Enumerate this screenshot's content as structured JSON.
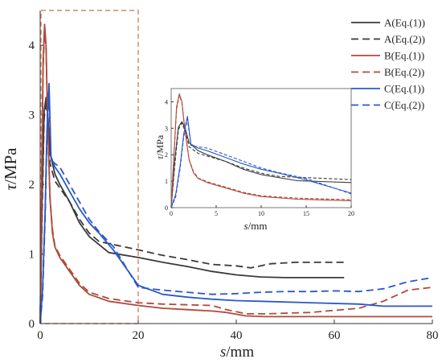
{
  "chart_data": [
    {
      "type": "line",
      "title": "",
      "xlabel_var": "s",
      "xlabel_unit": "/mm",
      "ylabel_var": "τ",
      "ylabel_unit": "/MPa",
      "xlim": [
        0,
        80
      ],
      "ylim": [
        0,
        4.5
      ],
      "xticks": [
        "0",
        "20",
        "40",
        "60",
        "80"
      ],
      "yticks": [
        "0",
        "1",
        "2",
        "3",
        "4"
      ],
      "grid": false,
      "legend_position": "top-right",
      "zoom_region": {
        "x": [
          0,
          20
        ],
        "y": [
          0,
          4.5
        ]
      },
      "series": [
        {
          "name": "A(Eq.(1))",
          "color": "#3a3a3a",
          "dash": "solid",
          "x": [
            0,
            0.4,
            0.8,
            1.2,
            1.6,
            2,
            3,
            4,
            6,
            8,
            10,
            14,
            20,
            25,
            30,
            35,
            40,
            45,
            50,
            55,
            62
          ],
          "y": [
            0,
            1.8,
            3.05,
            3.25,
            2.95,
            2.45,
            2.15,
            2.0,
            1.75,
            1.45,
            1.25,
            1.02,
            0.95,
            0.88,
            0.82,
            0.75,
            0.7,
            0.67,
            0.66,
            0.66,
            0.66
          ]
        },
        {
          "name": "A(Eq.(2))",
          "color": "#3a3a3a",
          "dash": "dashed",
          "x": [
            0,
            0.4,
            0.8,
            1.2,
            1.6,
            2,
            3,
            4,
            6,
            8,
            10,
            12,
            16,
            20,
            25,
            30,
            35,
            40,
            43,
            47,
            52,
            57,
            62
          ],
          "y": [
            0,
            1.6,
            2.95,
            3.2,
            2.85,
            2.3,
            2.05,
            1.95,
            1.75,
            1.5,
            1.3,
            1.18,
            1.12,
            1.06,
            0.98,
            0.92,
            0.85,
            0.83,
            0.8,
            0.86,
            0.88,
            0.88,
            0.88
          ]
        },
        {
          "name": "B(Eq.(1))",
          "color": "#b04a3a",
          "dash": "solid",
          "x": [
            0,
            0.3,
            0.6,
            0.9,
            1.2,
            1.5,
            2,
            2.5,
            3,
            4,
            6,
            8,
            10,
            14,
            20,
            25,
            30,
            35,
            38,
            42,
            46,
            55,
            65,
            80
          ],
          "y": [
            0,
            2.0,
            3.8,
            4.3,
            4.0,
            3.0,
            1.8,
            1.3,
            1.1,
            0.95,
            0.75,
            0.55,
            0.42,
            0.32,
            0.26,
            0.22,
            0.2,
            0.18,
            0.16,
            0.11,
            0.1,
            0.1,
            0.1,
            0.1
          ]
        },
        {
          "name": "B(Eq.(2))",
          "color": "#b04a3a",
          "dash": "dashed",
          "x": [
            0,
            0.3,
            0.6,
            0.9,
            1.2,
            1.5,
            2,
            2.5,
            3,
            4,
            6,
            8,
            10,
            14,
            20,
            25,
            30,
            35,
            38,
            42,
            46,
            55,
            65,
            70,
            75,
            80
          ],
          "y": [
            0,
            1.9,
            3.7,
            4.25,
            3.95,
            3.0,
            1.8,
            1.35,
            1.12,
            0.98,
            0.78,
            0.58,
            0.45,
            0.36,
            0.3,
            0.28,
            0.27,
            0.26,
            0.2,
            0.14,
            0.14,
            0.16,
            0.22,
            0.32,
            0.48,
            0.52
          ]
        },
        {
          "name": "C(Eq.(1))",
          "color": "#2b57c8",
          "dash": "solid",
          "x": [
            0,
            0.5,
            1.0,
            1.4,
            1.8,
            2.2,
            3,
            4,
            6,
            8,
            10,
            12,
            15,
            20,
            25,
            30,
            35,
            40,
            45,
            55,
            65,
            70,
            80
          ],
          "y": [
            0,
            0.5,
            1.6,
            2.8,
            3.45,
            2.4,
            2.25,
            2.15,
            1.9,
            1.65,
            1.45,
            1.3,
            1.05,
            0.55,
            0.42,
            0.38,
            0.35,
            0.33,
            0.32,
            0.3,
            0.28,
            0.25,
            0.25
          ]
        },
        {
          "name": "C(Eq.(2))",
          "color": "#2b57c8",
          "dash": "dashed",
          "x": [
            0,
            0.5,
            1.0,
            1.4,
            1.8,
            2.2,
            3,
            4,
            6,
            8,
            10,
            12,
            15,
            20,
            25,
            30,
            35,
            40,
            45,
            50,
            55,
            60,
            65,
            70,
            75,
            80
          ],
          "y": [
            0,
            0.4,
            1.5,
            2.7,
            3.35,
            2.35,
            2.3,
            2.25,
            2.0,
            1.75,
            1.5,
            1.32,
            1.1,
            0.52,
            0.48,
            0.45,
            0.42,
            0.43,
            0.45,
            0.46,
            0.46,
            0.47,
            0.46,
            0.5,
            0.6,
            0.66
          ]
        }
      ]
    },
    {
      "type": "line",
      "role": "inset",
      "title": "",
      "xlabel_var": "s",
      "xlabel_unit": "/mm",
      "ylabel_var": "τ",
      "ylabel_unit": "/MPa",
      "xlim": [
        0,
        20
      ],
      "ylim": [
        0,
        4.5
      ],
      "xticks": [
        "0",
        "5",
        "10",
        "15",
        "20"
      ],
      "yticks": [
        "0",
        "1",
        "2",
        "3",
        "4"
      ],
      "grid": false,
      "series_ref": "same as main chart, x range 0–20"
    }
  ]
}
